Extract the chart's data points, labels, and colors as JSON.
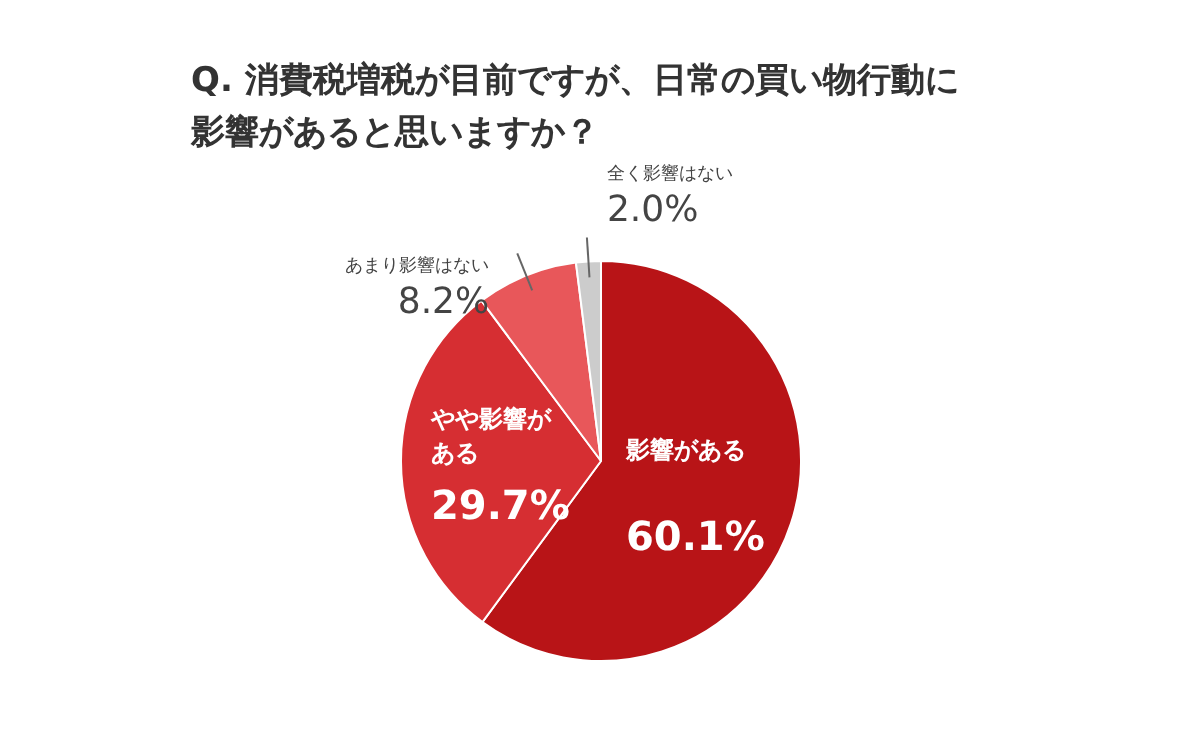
{
  "chart_data": {
    "type": "pie",
    "title": "Q. 消費税増税が目前ですが、日常の買い物行動に影響があると思いますか？",
    "categories": [
      "影響がある",
      "やや影響がある",
      "あまり影響はない",
      "全く影響はない"
    ],
    "values": [
      60.1,
      29.7,
      8.2,
      2.0
    ],
    "colors": [
      "#b81417",
      "#d62e32",
      "#e8575a",
      "#cccccc"
    ],
    "value_labels": [
      "60.1%",
      "29.7%",
      "8.2%",
      "2.0%"
    ]
  }
}
